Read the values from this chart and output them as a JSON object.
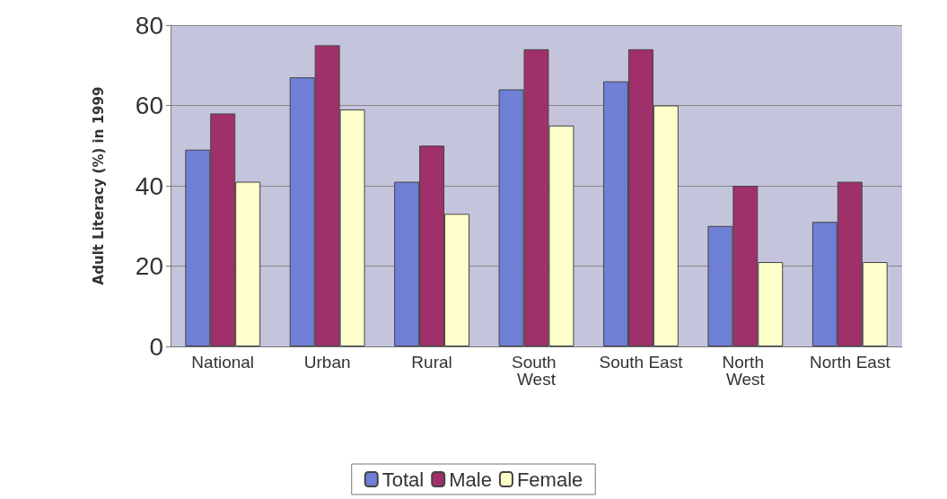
{
  "chart_data": {
    "type": "bar",
    "ylabel": "Adult Literacy (%) in 1999",
    "categories": [
      "National",
      "Urban",
      "Rural",
      "South West",
      "South East",
      "North West",
      "North East"
    ],
    "series": [
      {
        "name": "Total",
        "color": "#6f7fd6",
        "values": [
          49,
          67,
          41,
          64,
          66,
          30,
          31
        ]
      },
      {
        "name": "Male",
        "color": "#a0306a",
        "values": [
          58,
          75,
          50,
          74,
          74,
          40,
          41
        ]
      },
      {
        "name": "Female",
        "color": "#ffffcc",
        "values": [
          41,
          59,
          33,
          55,
          60,
          21,
          21
        ]
      }
    ],
    "ylim": [
      0,
      80
    ],
    "yticks": [
      0,
      20,
      40,
      60,
      80
    ],
    "grid": "y",
    "legend": "bottom"
  }
}
